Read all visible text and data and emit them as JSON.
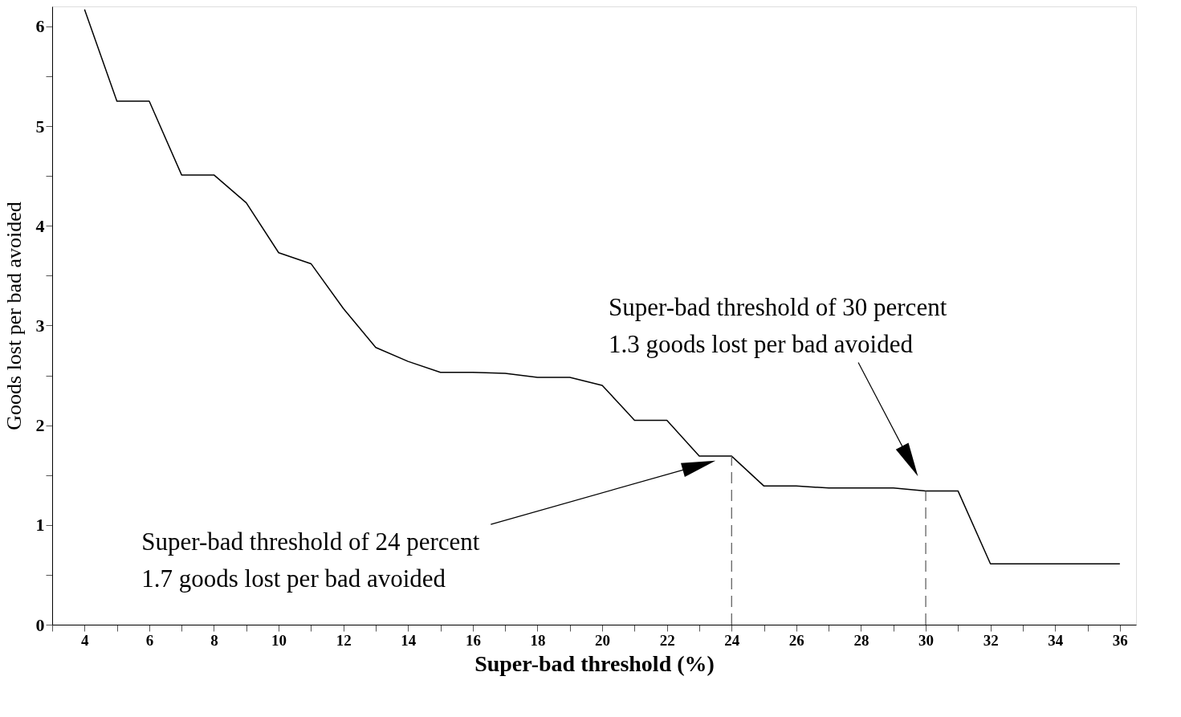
{
  "chart_data": {
    "type": "line",
    "xlabel": "Super-bad threshold (%)",
    "ylabel": "Goods lost per bad avoided",
    "x": [
      4,
      5,
      6,
      7,
      8,
      9,
      10,
      11,
      12,
      13,
      14,
      15,
      16,
      17,
      18,
      19,
      20,
      21,
      22,
      23,
      24,
      25,
      26,
      27,
      28,
      29,
      30,
      31,
      32,
      33,
      34,
      35,
      36
    ],
    "series": [
      {
        "color": "#000000",
        "values": [
          6.17,
          5.25,
          5.25,
          4.51,
          4.51,
          4.23,
          3.73,
          3.62,
          3.17,
          2.78,
          2.64,
          2.53,
          2.53,
          2.52,
          2.48,
          2.48,
          2.4,
          2.05,
          2.05,
          1.69,
          1.69,
          1.39,
          1.39,
          1.37,
          1.37,
          1.37,
          1.34,
          1.34,
          0.61,
          0.61,
          0.61,
          0.61,
          0.61
        ]
      }
    ],
    "xlim": [
      3,
      36.5
    ],
    "ylim": [
      0,
      6.2
    ],
    "xticks": [
      {
        "value": 3,
        "label": null
      },
      4,
      {
        "value": 5,
        "label": null
      },
      6,
      {
        "value": 7,
        "label": null
      },
      8,
      {
        "value": 9,
        "label": null
      },
      10,
      {
        "value": 11,
        "label": null
      },
      12,
      {
        "value": 13,
        "label": null
      },
      14,
      {
        "value": 15,
        "label": null
      },
      16,
      {
        "value": 17,
        "label": null
      },
      18,
      {
        "value": 19,
        "label": null
      },
      20,
      {
        "value": 21,
        "label": null
      },
      22,
      {
        "value": 23,
        "label": null
      },
      24,
      {
        "value": 25,
        "label": null
      },
      26,
      {
        "value": 27,
        "label": null
      },
      28,
      {
        "value": 29,
        "label": null
      },
      30,
      {
        "value": 31,
        "label": null
      },
      32,
      {
        "value": 33,
        "label": null
      },
      34,
      {
        "value": 35,
        "label": null
      },
      36
    ],
    "yticks": [
      0,
      {
        "value": 0.5,
        "label": null
      },
      1,
      {
        "value": 1.5,
        "label": null
      },
      2,
      {
        "value": 2.5,
        "label": null
      },
      3,
      {
        "value": 3.5,
        "label": null
      },
      4,
      {
        "value": 4.5,
        "label": null
      },
      5,
      {
        "value": 5.5,
        "label": null
      },
      6
    ],
    "grid": false,
    "legend": false,
    "marker": "none",
    "line_style": "solid",
    "ref_lines": [
      {
        "axis": "x",
        "value": 24,
        "line_style": "dashed"
      },
      {
        "axis": "x",
        "value": 30,
        "line_style": "dashed"
      }
    ],
    "annotations": [
      "Super-bad threshold of 24 percent\n1.7 goods lost per bad avoided",
      "Super-bad threshold of 30 percent\n1.3 goods lost per bad avoided"
    ]
  }
}
